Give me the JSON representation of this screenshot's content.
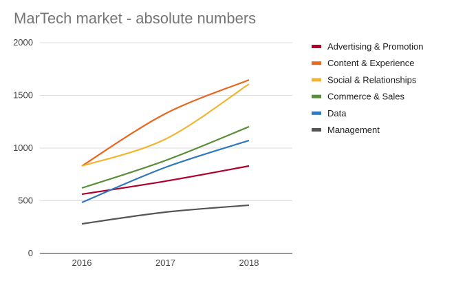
{
  "chart_data": {
    "type": "line",
    "title": "MarTech market - absolute numbers",
    "xlabel": "",
    "ylabel": "",
    "categories": [
      "2016",
      "2017",
      "2018"
    ],
    "ylim": [
      0,
      2000
    ],
    "yticks": [
      "0",
      "500",
      "1000",
      "1500",
      "2000"
    ],
    "grid": true,
    "legend": "right",
    "smooth": true,
    "series": [
      {
        "name": "Advertising & Promotion",
        "color": "#b0002a",
        "values": [
          562,
          686,
          830
        ]
      },
      {
        "name": "Content & Experience",
        "color": "#e8661e",
        "values": [
          830,
          1327,
          1647
        ]
      },
      {
        "name": "Social & Relationships",
        "color": "#f2b531",
        "values": [
          830,
          1085,
          1608
        ]
      },
      {
        "name": "Commerce & Sales",
        "color": "#5a8f3a",
        "values": [
          621,
          882,
          1203
        ]
      },
      {
        "name": "Data",
        "color": "#2f78be",
        "values": [
          484,
          817,
          1072
        ]
      },
      {
        "name": "Management",
        "color": "#555555",
        "values": [
          281,
          392,
          458
        ]
      }
    ]
  }
}
